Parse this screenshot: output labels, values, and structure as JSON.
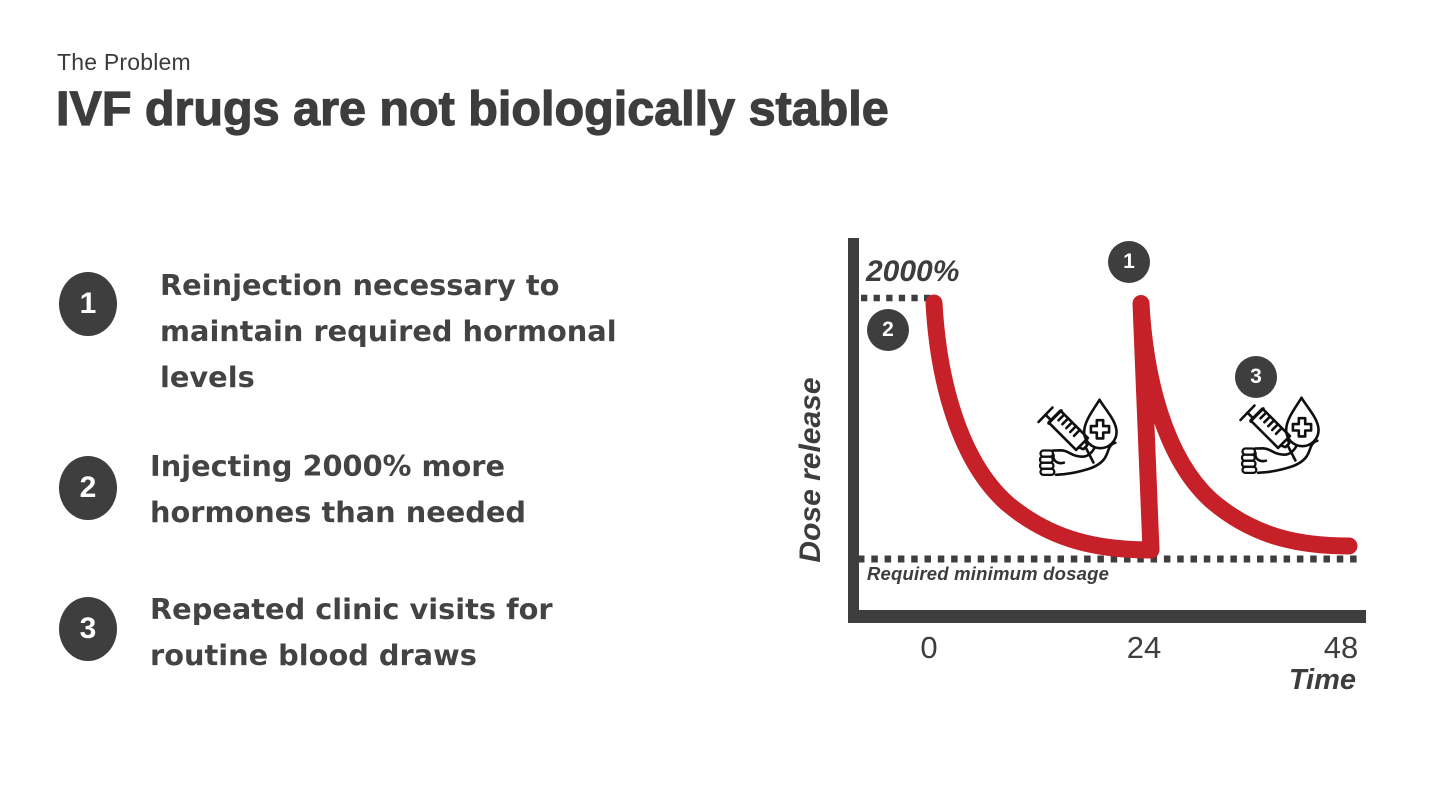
{
  "header": {
    "eyebrow": "The Problem",
    "title": "IVF drugs are not biologically stable"
  },
  "bullets": [
    {
      "number": "1",
      "lines": [
        "Reinjection necessary to",
        "maintain required hormonal",
        "levels"
      ]
    },
    {
      "number": "2",
      "lines": [
        "Injecting 2000% more",
        "hormones than needed"
      ]
    },
    {
      "number": "3",
      "lines": [
        "Repeated clinic visits for",
        "routine blood draws"
      ]
    }
  ],
  "chart_data": {
    "type": "line",
    "title": "",
    "xlabel": "Time",
    "ylabel": "Dose release",
    "x_tick_labels": [
      "0",
      "24",
      "48"
    ],
    "x_ticks": [
      0,
      24,
      48
    ],
    "grid": false,
    "reference_lines": [
      {
        "label": "2000%",
        "level": "initial dose peak",
        "style": "dotted"
      },
      {
        "label": "Required minimum dosage",
        "level": "minimum effective dose",
        "style": "dotted"
      }
    ],
    "series": [
      {
        "name": "Dose release",
        "color": "#c62128",
        "shape": "sawtooth-exponential-decay",
        "points": [
          {
            "x": 0,
            "y": 2000,
            "note": "injection peak at 2000%"
          },
          {
            "x": 24,
            "y": 100,
            "note": "decays to required minimum dosage"
          },
          {
            "x": 24,
            "y": 2000,
            "note": "re-injection spike back to 2000%"
          },
          {
            "x": 48,
            "y": 100,
            "note": "decays to required minimum dosage"
          }
        ]
      }
    ],
    "markers": [
      {
        "label": "1",
        "at": "second injection peak (x=24)"
      },
      {
        "label": "2",
        "at": "first injection peak (x=0)"
      },
      {
        "label": "3",
        "at": "second decay interval"
      }
    ],
    "icons": [
      "syringe-arm-icon",
      "syringe-arm-icon"
    ]
  },
  "colors": {
    "ink": "#3e3e3e",
    "accent_red": "#c62128",
    "background": "#ffffff"
  }
}
